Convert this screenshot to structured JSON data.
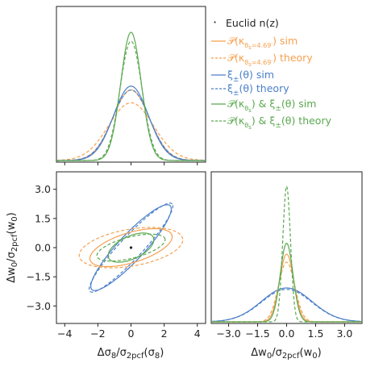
{
  "chart_data": {
    "type": "corner-plot",
    "legend": {
      "placement": "top-right",
      "entries": [
        {
          "text": "· Euclid n(z)",
          "color": "#222222",
          "style": "point"
        },
        {
          "text": "𝒫(κθs=4.69′) sim",
          "color": "#f5a04f",
          "style": "solid"
        },
        {
          "text": "𝒫(κθs=4.69′) theory",
          "color": "#f5a04f",
          "style": "dashed"
        },
        {
          "text": "ξ±(θ) sim",
          "color": "#4a7fc9",
          "style": "solid"
        },
        {
          "text": "ξ±(θ) theory",
          "color": "#4a7fc9",
          "style": "dashed"
        },
        {
          "text": "𝒫(κθs) & ξ±(θ) sim",
          "color": "#5aa84f",
          "style": "solid"
        },
        {
          "text": "𝒫(κθs) & ξ±(θ) theory",
          "color": "#5aa84f",
          "style": "dashed"
        }
      ]
    },
    "panels": {
      "top_left": {
        "type": "line",
        "xlim": [
          -4.5,
          4.5
        ],
        "series": [
          {
            "name": "𝒫(κθs=4.69′) sim",
            "color": "#f5a04f",
            "dash": false,
            "sigma": 1.1,
            "peak": 0.55
          },
          {
            "name": "𝒫(κθs=4.69′) theory",
            "color": "#f5a04f",
            "dash": true,
            "sigma": 1.35,
            "peak": 0.45
          },
          {
            "name": "ξ±(θ) sim",
            "color": "#4a7fc9",
            "dash": false,
            "sigma": 1.05,
            "peak": 0.58
          },
          {
            "name": "ξ±(θ) theory",
            "color": "#4a7fc9",
            "dash": true,
            "sigma": 1.1,
            "peak": 0.55
          },
          {
            "name": "𝒫(κθs) & ξ±(θ) sim",
            "color": "#5aa84f",
            "dash": false,
            "sigma": 0.62,
            "peak": 1.0
          },
          {
            "name": "𝒫(κθs) & ξ±(θ) theory",
            "color": "#5aa84f",
            "dash": true,
            "sigma": 0.66,
            "peak": 0.93
          }
        ]
      },
      "bottom_left": {
        "type": "contour",
        "xlabel": "Δσ8/σ2pcf(σ8)",
        "ylabel": "Δw0/σ2pcf(w0)",
        "xlim": [
          -4.5,
          4.5
        ],
        "ylim": [
          -3.9,
          3.9
        ],
        "xticks": [
          "−4",
          "−2",
          "0",
          "2",
          "4"
        ],
        "xtick_values": [
          -4,
          -2,
          0,
          2,
          4
        ],
        "yticks": [
          "3.0",
          "1.5",
          "0.0",
          "−1.5",
          "−3.0"
        ],
        "ytick_values": [
          3.0,
          1.5,
          0.0,
          -1.5,
          -3.0
        ],
        "point": [
          0,
          0
        ],
        "ellipses": [
          {
            "series": "ξ±(θ) sim",
            "color": "#4a7fc9",
            "dash": false,
            "cx": 0,
            "cy": 0,
            "rx": 3.2,
            "ry": 0.72,
            "angle": 42
          },
          {
            "series": "ξ±(θ) theory",
            "color": "#4a7fc9",
            "dash": true,
            "cx": 0,
            "cy": 0,
            "rx": 3.35,
            "ry": 0.62,
            "angle": 42
          },
          {
            "series": "𝒫(κθs=4.69′) sim",
            "color": "#f5a04f",
            "dash": false,
            "cx": 0,
            "cy": 0,
            "rx": 2.55,
            "ry": 0.78,
            "angle": 14
          },
          {
            "series": "𝒫(κθs=4.69′) theory",
            "color": "#f5a04f",
            "dash": true,
            "cx": 0,
            "cy": 0,
            "rx": 3.15,
            "ry": 0.95,
            "angle": 8
          },
          {
            "series": "𝒫(κθs) & ξ±(θ) sim",
            "color": "#5aa84f",
            "dash": false,
            "cx": 0,
            "cy": 0,
            "rx": 1.45,
            "ry": 0.6,
            "angle": 20
          },
          {
            "series": "𝒫(κθs) & ξ±(θ) theory",
            "color": "#5aa84f",
            "dash": true,
            "cx": 0,
            "cy": 0,
            "rx": 2.1,
            "ry": 0.55,
            "angle": 12
          }
        ]
      },
      "bottom_right": {
        "type": "line",
        "xlabel": "Δw0/σ2pcf(w0)",
        "xlim": [
          -3.9,
          3.9
        ],
        "xticks": [
          "−3.0",
          "−1.5",
          "0.0",
          "1.5",
          "3.0"
        ],
        "xtick_values": [
          -3.0,
          -1.5,
          0.0,
          1.5,
          3.0
        ],
        "series": [
          {
            "name": "ξ±(θ) sim",
            "color": "#4a7fc9",
            "dash": false,
            "sigma": 1.3,
            "peak": 0.25
          },
          {
            "name": "ξ±(θ) theory",
            "color": "#4a7fc9",
            "dash": true,
            "sigma": 1.3,
            "peak": 0.24
          },
          {
            "name": "𝒫(κθs=4.69′) sim",
            "color": "#f5a04f",
            "dash": false,
            "sigma": 0.37,
            "peak": 0.5
          },
          {
            "name": "𝒫(κθs=4.69′) theory",
            "color": "#f5a04f",
            "dash": true,
            "sigma": 0.42,
            "peak": 0.44
          },
          {
            "name": "𝒫(κθs) & ξ±(θ) sim",
            "color": "#5aa84f",
            "dash": false,
            "sigma": 0.33,
            "peak": 0.58
          },
          {
            "name": "𝒫(κθs) & ξ±(θ) theory",
            "color": "#5aa84f",
            "dash": true,
            "sigma": 0.2,
            "peak": 1.0
          }
        ]
      }
    }
  }
}
